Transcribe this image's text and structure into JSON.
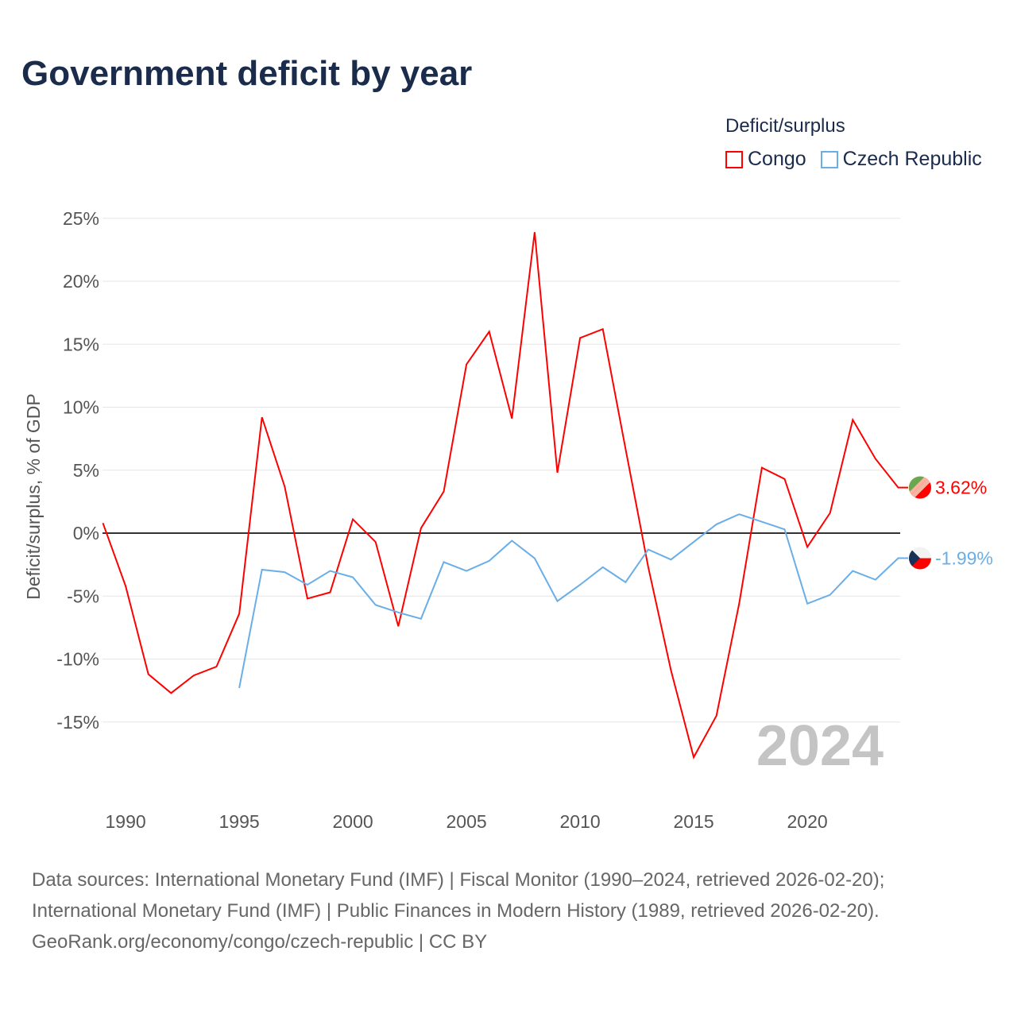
{
  "title": "Government deficit by year",
  "legend": {
    "title": "Deficit/surplus",
    "items": [
      "Congo",
      "Czech Republic"
    ]
  },
  "watermark_year": "2024",
  "footer": [
    "Data sources: International Monetary Fund (IMF) | Fiscal Monitor (1990–2024, retrieved 2026-02-20);",
    "International Monetary Fund (IMF) | Public Finances in Modern History (1989, retrieved 2026-02-20).",
    "GeoRank.org/economy/congo/czech-republic | CC BY"
  ],
  "chart_data": {
    "type": "line",
    "title": "Government deficit by year",
    "xlabel": "",
    "ylabel": "Deficit/surplus, % of GDP",
    "xlim": [
      1989,
      2024
    ],
    "ylim": [
      -20,
      26
    ],
    "xticks": [
      1990,
      1995,
      2000,
      2005,
      2010,
      2015,
      2020
    ],
    "yticks": [
      -15,
      -10,
      -5,
      0,
      5,
      10,
      15,
      20,
      25
    ],
    "ytick_labels": [
      "-15%",
      "-10%",
      "-5%",
      "0%",
      "5%",
      "10%",
      "15%",
      "20%",
      "25%"
    ],
    "grid": true,
    "legend_position": "top-right",
    "series": [
      {
        "name": "Congo",
        "color": "#ff0000",
        "end_label": "3.62%",
        "x": [
          1989,
          1990,
          1991,
          1992,
          1993,
          1994,
          1995,
          1996,
          1997,
          1998,
          1999,
          2000,
          2001,
          2002,
          2003,
          2004,
          2005,
          2006,
          2007,
          2008,
          2009,
          2010,
          2011,
          2012,
          2013,
          2014,
          2015,
          2016,
          2017,
          2018,
          2019,
          2020,
          2021,
          2022,
          2023,
          2024
        ],
        "values": [
          0.8,
          -4.2,
          -11.2,
          -12.7,
          -11.3,
          -10.6,
          -6.4,
          9.2,
          3.7,
          -5.2,
          -4.7,
          1.1,
          -0.7,
          -7.4,
          0.4,
          3.3,
          13.4,
          16.0,
          9.1,
          23.9,
          4.8,
          15.5,
          16.2,
          6.7,
          -2.7,
          -10.9,
          -17.8,
          -14.5,
          -5.6,
          5.2,
          4.3,
          -1.1,
          1.6,
          9.0,
          5.9,
          3.62
        ]
      },
      {
        "name": "Czech Republic",
        "color": "#6aaee8",
        "end_label": "-1.99%",
        "x": [
          1995,
          1996,
          1997,
          1998,
          1999,
          2000,
          2001,
          2002,
          2003,
          2004,
          2005,
          2006,
          2007,
          2008,
          2009,
          2010,
          2011,
          2012,
          2013,
          2014,
          2015,
          2016,
          2017,
          2018,
          2019,
          2020,
          2021,
          2022,
          2023,
          2024
        ],
        "values": [
          -12.3,
          -2.9,
          -3.1,
          -4.1,
          -3.0,
          -3.5,
          -5.7,
          -6.3,
          -6.8,
          -2.3,
          -3.0,
          -2.2,
          -0.6,
          -2.0,
          -5.4,
          -4.1,
          -2.7,
          -3.9,
          -1.3,
          -2.1,
          -0.7,
          0.7,
          1.5,
          0.9,
          0.3,
          -5.6,
          -4.9,
          -3.0,
          -3.7,
          -1.99
        ]
      }
    ]
  }
}
